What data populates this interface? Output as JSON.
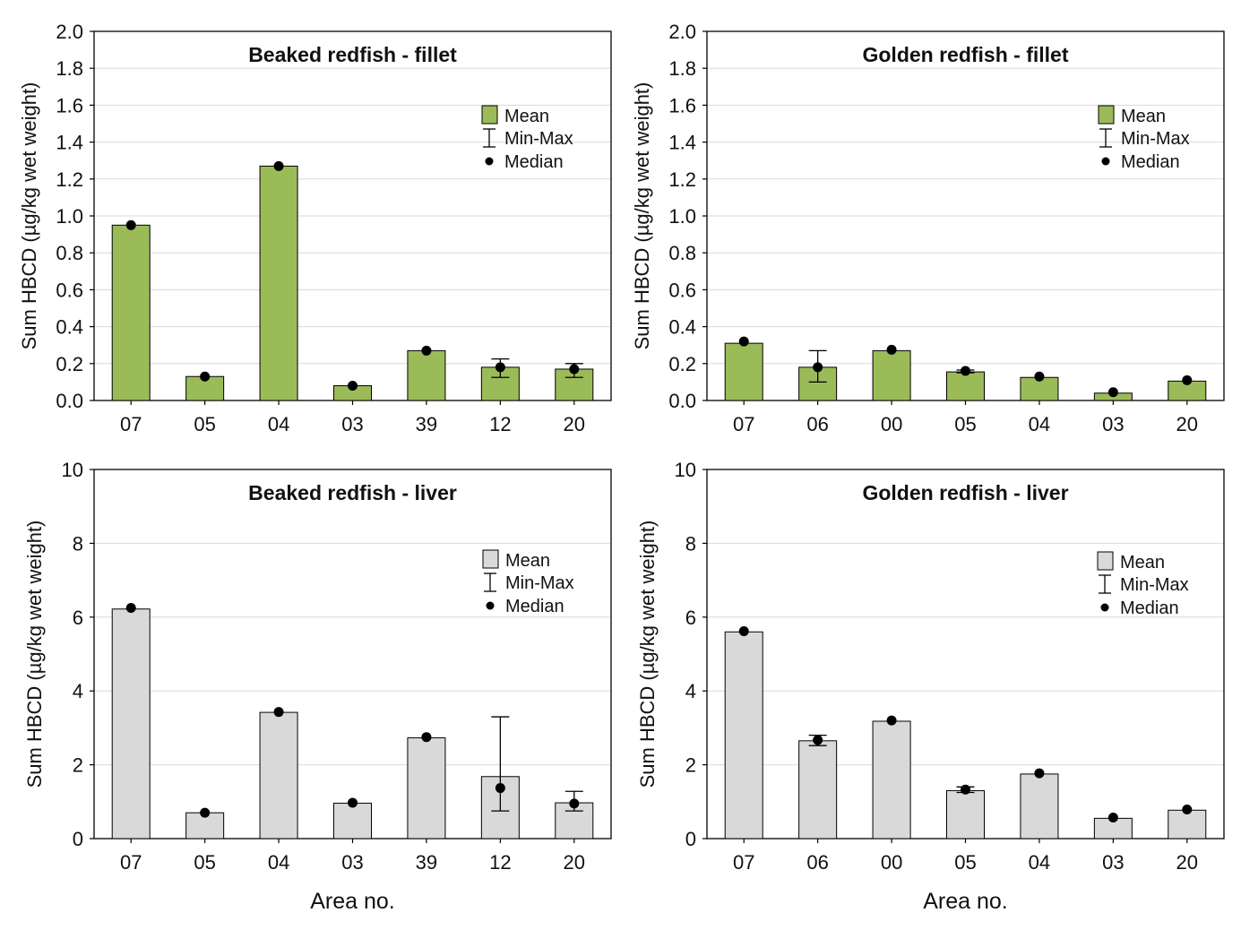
{
  "colors": {
    "fillet": "#9bbb59",
    "liver": "#d9d9d9",
    "stroke": "#000000",
    "grid": "#d9d9d9"
  },
  "legend": {
    "mean": "Mean",
    "minmax": "Min-Max",
    "median": "Median"
  },
  "shared": {
    "ylabel": "Sum HBCD (µg/kg wet weight)",
    "xlabel": "Area no."
  },
  "chart_data": [
    {
      "type": "bar",
      "title": "Beaked redfish - fillet",
      "ylabel": "Sum HBCD (µg/kg wet weight)",
      "xlabel": "",
      "ylim": [
        0,
        2.0
      ],
      "yticks": [
        "0.0",
        "0.2",
        "0.4",
        "0.6",
        "0.8",
        "1.0",
        "1.2",
        "1.4",
        "1.6",
        "1.8",
        "2.0"
      ],
      "categories": [
        "07",
        "05",
        "04",
        "03",
        "39",
        "12",
        "20"
      ],
      "series": [
        {
          "name": "Mean",
          "values": [
            0.95,
            0.13,
            1.27,
            0.08,
            0.27,
            0.18,
            0.17
          ]
        },
        {
          "name": "Median",
          "values": [
            0.95,
            0.13,
            1.27,
            0.08,
            0.27,
            0.18,
            0.17
          ]
        },
        {
          "name": "Min",
          "values": [
            null,
            null,
            null,
            null,
            null,
            0.125,
            0.125
          ]
        },
        {
          "name": "Max",
          "values": [
            null,
            null,
            null,
            null,
            null,
            0.225,
            0.2
          ]
        }
      ],
      "fill": "fillet",
      "legend_position": "top-right",
      "grid": true
    },
    {
      "type": "bar",
      "title": "Golden redfish - fillet",
      "ylabel": "Sum HBCD (µg/kg wet weight)",
      "xlabel": "",
      "ylim": [
        0,
        2.0
      ],
      "yticks": [
        "0.0",
        "0.2",
        "0.4",
        "0.6",
        "0.8",
        "1.0",
        "1.2",
        "1.4",
        "1.6",
        "1.8",
        "2.0"
      ],
      "categories": [
        "07",
        "06",
        "00",
        "05",
        "04",
        "03",
        "20"
      ],
      "series": [
        {
          "name": "Mean",
          "values": [
            0.31,
            0.18,
            0.27,
            0.155,
            0.125,
            0.04,
            0.105
          ]
        },
        {
          "name": "Median",
          "values": [
            0.32,
            0.18,
            0.275,
            0.16,
            0.13,
            0.045,
            0.11
          ]
        },
        {
          "name": "Min",
          "values": [
            null,
            0.1,
            null,
            0.15,
            null,
            null,
            null
          ]
        },
        {
          "name": "Max",
          "values": [
            null,
            0.27,
            null,
            0.165,
            null,
            null,
            null
          ]
        }
      ],
      "fill": "fillet",
      "legend_position": "top-right",
      "grid": true
    },
    {
      "type": "bar",
      "title": "Beaked redfish - liver",
      "ylabel": "Sum HBCD (µg/kg wet weight)",
      "xlabel": "Area no.",
      "ylim": [
        0,
        10
      ],
      "yticks": [
        "0",
        "2",
        "4",
        "6",
        "8",
        "10"
      ],
      "categories": [
        "07",
        "05",
        "04",
        "03",
        "39",
        "12",
        "20"
      ],
      "series": [
        {
          "name": "Mean",
          "values": [
            6.22,
            0.7,
            3.42,
            0.96,
            2.73,
            1.68,
            0.97
          ]
        },
        {
          "name": "Median",
          "values": [
            6.25,
            0.7,
            3.43,
            0.97,
            2.75,
            1.37,
            0.95
          ]
        },
        {
          "name": "Min",
          "values": [
            null,
            null,
            null,
            null,
            null,
            0.75,
            0.75
          ]
        },
        {
          "name": "Max",
          "values": [
            null,
            null,
            null,
            null,
            null,
            3.3,
            1.28
          ]
        }
      ],
      "fill": "liver",
      "legend_position": "top-right",
      "grid": true
    },
    {
      "type": "bar",
      "title": "Golden redfish - liver",
      "ylabel": "Sum HBCD (µg/kg wet weight)",
      "xlabel": "Area no.",
      "ylim": [
        0,
        10
      ],
      "yticks": [
        "0",
        "2",
        "4",
        "6",
        "8",
        "10"
      ],
      "categories": [
        "07",
        "06",
        "00",
        "05",
        "04",
        "03",
        "20"
      ],
      "series": [
        {
          "name": "Mean",
          "values": [
            5.6,
            2.65,
            3.18,
            1.3,
            1.75,
            0.55,
            0.77
          ]
        },
        {
          "name": "Median",
          "values": [
            5.62,
            2.67,
            3.2,
            1.33,
            1.77,
            0.57,
            0.79
          ]
        },
        {
          "name": "Min",
          "values": [
            null,
            2.52,
            null,
            1.25,
            null,
            null,
            null
          ]
        },
        {
          "name": "Max",
          "values": [
            null,
            2.8,
            null,
            1.4,
            null,
            null,
            null
          ]
        }
      ],
      "fill": "liver",
      "legend_position": "top-right",
      "grid": true
    }
  ]
}
